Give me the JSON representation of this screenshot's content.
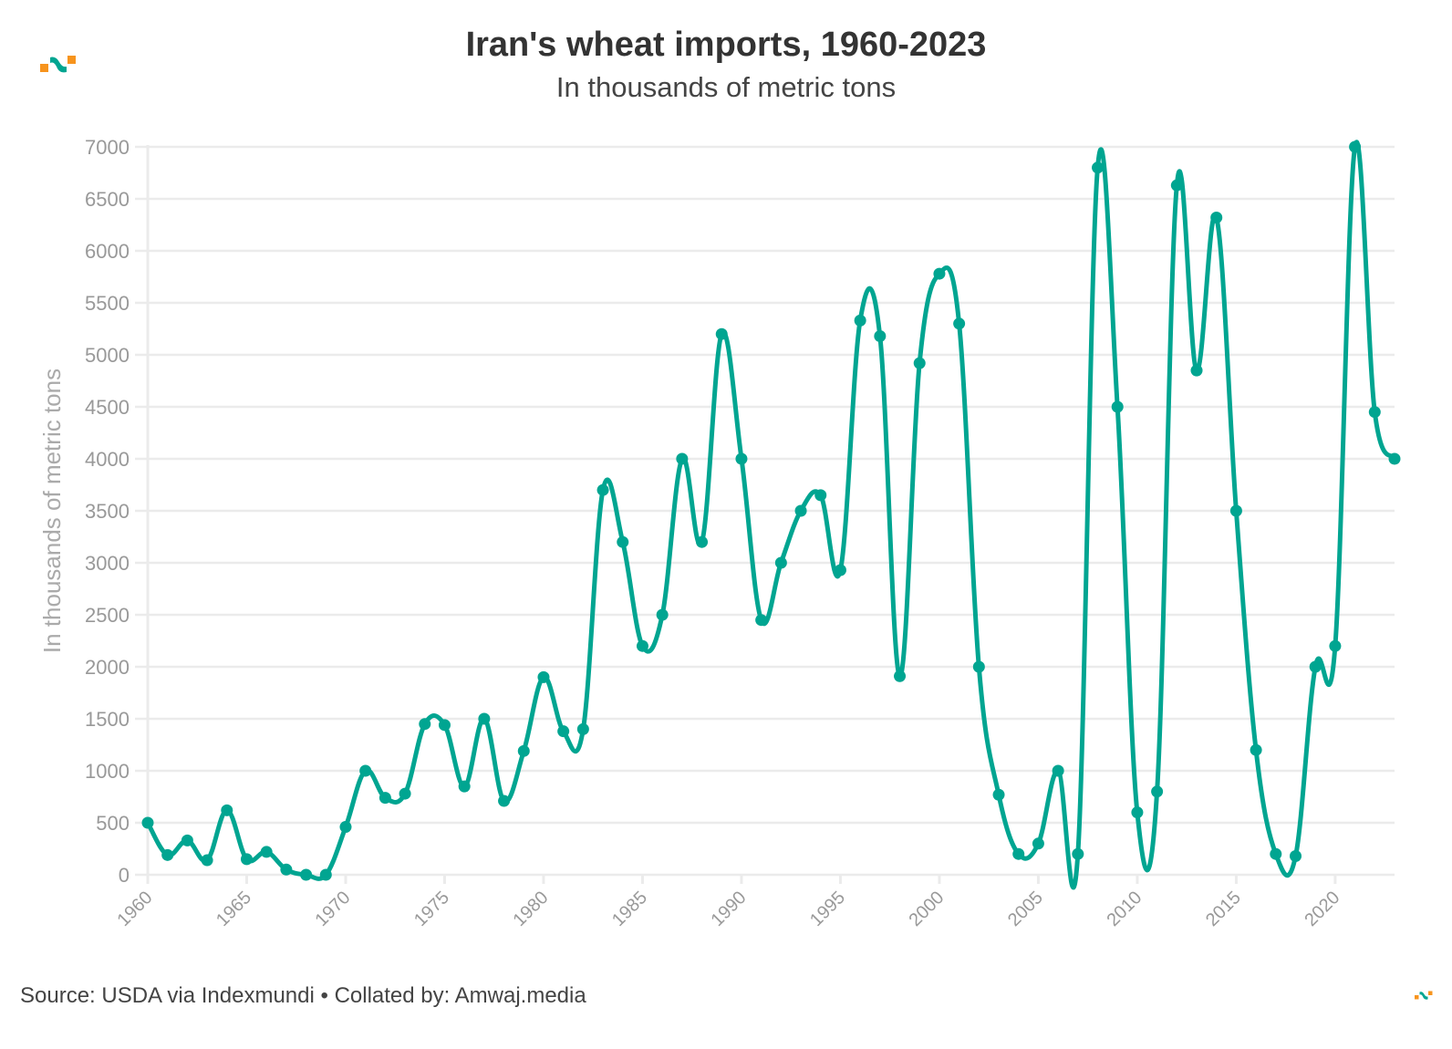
{
  "header": {
    "title": "Iran's wheat imports, 1960-2023",
    "subtitle": "In thousands of metric tons"
  },
  "footer": {
    "source": "Source: USDA via Indexmundi • Collated by: Amwaj.media"
  },
  "logo": {
    "icon": "amwaj-logo-icon",
    "colors": {
      "orange": "#f7941d",
      "teal": "#00a591"
    }
  },
  "chart_data": {
    "type": "line",
    "title": "Iran's wheat imports, 1960-2023",
    "subtitle": "In thousands of metric tons",
    "xlabel": "",
    "ylabel": "In thousands of metric tons",
    "xlim": [
      1960,
      2023
    ],
    "ylim": [
      0,
      7000
    ],
    "yticks": [
      0,
      500,
      1000,
      1500,
      2000,
      2500,
      3000,
      3500,
      4000,
      4500,
      5000,
      5500,
      6000,
      6500,
      7000
    ],
    "xticks": [
      1960,
      1965,
      1970,
      1975,
      1980,
      1985,
      1990,
      1995,
      2000,
      2005,
      2010,
      2015,
      2020
    ],
    "grid": true,
    "legend": "none",
    "line_color": "#00a591",
    "series": [
      {
        "name": "Wheat imports",
        "x": [
          1960,
          1961,
          1962,
          1963,
          1964,
          1965,
          1966,
          1967,
          1968,
          1969,
          1970,
          1971,
          1972,
          1973,
          1974,
          1975,
          1976,
          1977,
          1978,
          1979,
          1980,
          1981,
          1982,
          1983,
          1984,
          1985,
          1986,
          1987,
          1988,
          1989,
          1990,
          1991,
          1992,
          1993,
          1994,
          1995,
          1996,
          1997,
          1998,
          1999,
          2000,
          2001,
          2002,
          2003,
          2004,
          2005,
          2006,
          2007,
          2008,
          2009,
          2010,
          2011,
          2012,
          2013,
          2014,
          2015,
          2016,
          2017,
          2018,
          2019,
          2020,
          2021,
          2022,
          2023
        ],
        "values": [
          500,
          190,
          330,
          140,
          620,
          150,
          220,
          50,
          0,
          0,
          460,
          1000,
          740,
          780,
          1450,
          1440,
          850,
          1500,
          710,
          1190,
          1900,
          1380,
          1400,
          3700,
          3200,
          2200,
          2500,
          4000,
          3200,
          5200,
          4000,
          2450,
          3000,
          3500,
          3650,
          2930,
          5330,
          5180,
          1910,
          4920,
          5780,
          5300,
          2000,
          770,
          200,
          300,
          1000,
          200,
          6800,
          4500,
          600,
          800,
          6630,
          4850,
          6320,
          3500,
          1200,
          200,
          180,
          2000,
          2200,
          7000,
          4450,
          4000
        ]
      }
    ]
  }
}
